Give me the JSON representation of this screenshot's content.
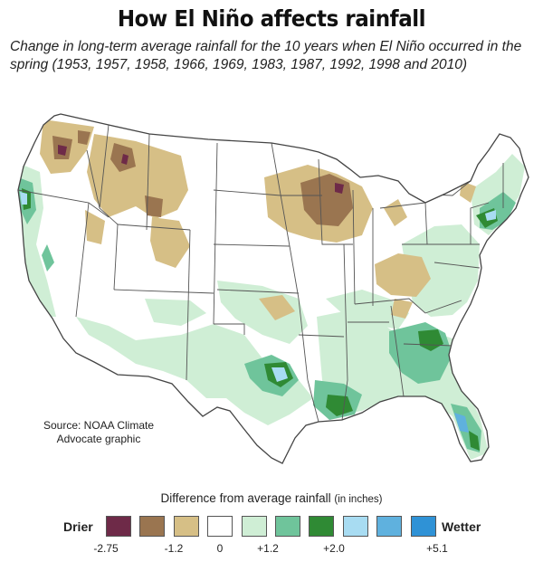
{
  "title": "How El Niño affects rainfall",
  "subtitle": "Change in long-term average rainfall for the 10 years when El Niño occurred in the spring (1953, 1957, 1958, 1966, 1969, 1983, 1987, 1992, 1998 and 2010)",
  "source_line1": "Source: NOAA Climate",
  "source_line2": "Advocate graphic",
  "legend": {
    "title": "Difference from average rainfall",
    "units": "(in inches)",
    "low_label": "Drier",
    "high_label": "Wetter",
    "colors": [
      "#6e2a48",
      "#9a7550",
      "#d6bf86",
      "#ffffff",
      "#cfeed5",
      "#6fc49b",
      "#2f8a34",
      "#a8dcf2",
      "#5fb1de",
      "#2f92d6"
    ],
    "ticks": [
      "-2.75",
      "-1.2",
      "0",
      "+1.2",
      "+2.0",
      "+5.1"
    ]
  },
  "colors": {
    "dark_dry": "#6e2a48",
    "mid_dry": "#9a7550",
    "light_dry": "#d6bf86",
    "light_wet": "#cfeed5",
    "mid_wet": "#6fc49b",
    "dark_wet": "#2f8a34",
    "light_blue": "#a8dcf2",
    "mid_blue": "#5fb1de"
  }
}
